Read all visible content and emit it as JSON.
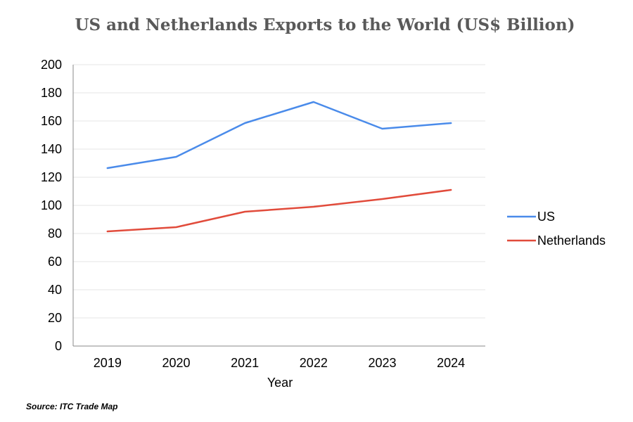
{
  "source": "Source: ITC Trade Map",
  "colors": {
    "US": "#4A8BEA",
    "Netherlands": "#E14B3B",
    "grid": "#E6E6E6",
    "axis": "#888888"
  },
  "chart_data": {
    "type": "line",
    "title": "US and Netherlands Exports to the World (US$ Billion)",
    "xlabel": "Year",
    "ylabel": "",
    "categories": [
      "2019",
      "2020",
      "2021",
      "2022",
      "2023",
      "2024"
    ],
    "ylim": [
      0,
      200
    ],
    "yticks": [
      0,
      20,
      40,
      60,
      80,
      100,
      120,
      140,
      160,
      180,
      200
    ],
    "grid": true,
    "legend": "right",
    "series": [
      {
        "name": "US",
        "values": [
          126.5,
          134.5,
          158.5,
          173.5,
          154.5,
          158.5
        ]
      },
      {
        "name": "Netherlands",
        "values": [
          81.5,
          84.5,
          95.5,
          99,
          104.5,
          111
        ]
      }
    ]
  }
}
